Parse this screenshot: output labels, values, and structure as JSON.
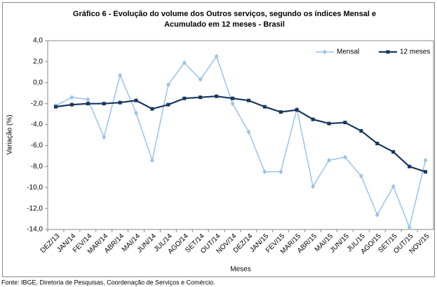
{
  "chart_data": {
    "type": "line",
    "title": [
      "Gráfico 6 - Evolução do volume dos Outros serviços, segundo os índices Mensal e",
      "Acumulado em 12 meses - Brasil"
    ],
    "x_label": "Meses",
    "y_label": "Variação (%)",
    "source": "Fonte: IBGE, Diretoria de Pesquisas, Coordenação de Serviços e Comércio.",
    "categories": [
      "DEZ/13",
      "JAN/14",
      "FEV/14",
      "MAR/14",
      "ABR/14",
      "MAI/14",
      "JUN/14",
      "JUL/14",
      "AGO/14",
      "SET/14",
      "OUT/14",
      "NOV/14",
      "DEZ/14",
      "JAN/15",
      "FEV/15",
      "MAR/15",
      "ABR/15",
      "MAI/15",
      "JUN/15",
      "JUL/15",
      "AGO/15",
      "SET/15",
      "OUT/15",
      "NOV/15"
    ],
    "series": [
      {
        "name": "Mensal",
        "color": "#99c2ee",
        "marker": "diamond",
        "values": [
          -2.2,
          -1.4,
          -1.6,
          -5.2,
          0.7,
          -2.9,
          -7.4,
          -0.2,
          1.9,
          0.3,
          2.5,
          -2.0,
          -4.7,
          -8.5,
          -8.5,
          -2.5,
          -9.9,
          -7.4,
          -7.1,
          -8.9,
          -12.6,
          -9.9,
          -13.8,
          -7.4
        ]
      },
      {
        "name": "12 meses",
        "color": "#17375e",
        "marker": "square",
        "values": [
          -2.3,
          -2.1,
          -2.0,
          -2.0,
          -1.9,
          -1.7,
          -2.5,
          -2.1,
          -1.5,
          -1.4,
          -1.3,
          -1.5,
          -1.7,
          -2.3,
          -2.8,
          -2.6,
          -3.5,
          -3.9,
          -3.8,
          -4.6,
          -5.8,
          -6.6,
          -8.0,
          -8.5
        ]
      }
    ],
    "ylim": [
      -14,
      4
    ],
    "yticks": [
      {
        "value": 4,
        "label": "4,0"
      },
      {
        "value": 2,
        "label": "2,0"
      },
      {
        "value": 0,
        "label": "0,0"
      },
      {
        "value": -2,
        "label": "-2,0"
      },
      {
        "value": -4,
        "label": "-4,0"
      },
      {
        "value": -6,
        "label": "-6,0"
      },
      {
        "value": -8,
        "label": "-8,0"
      },
      {
        "value": -10,
        "label": "-10,0"
      },
      {
        "value": -12,
        "label": "-12,0"
      },
      {
        "value": -14,
        "label": "-14,0"
      }
    ],
    "grid": false,
    "legend": "top-right"
  }
}
